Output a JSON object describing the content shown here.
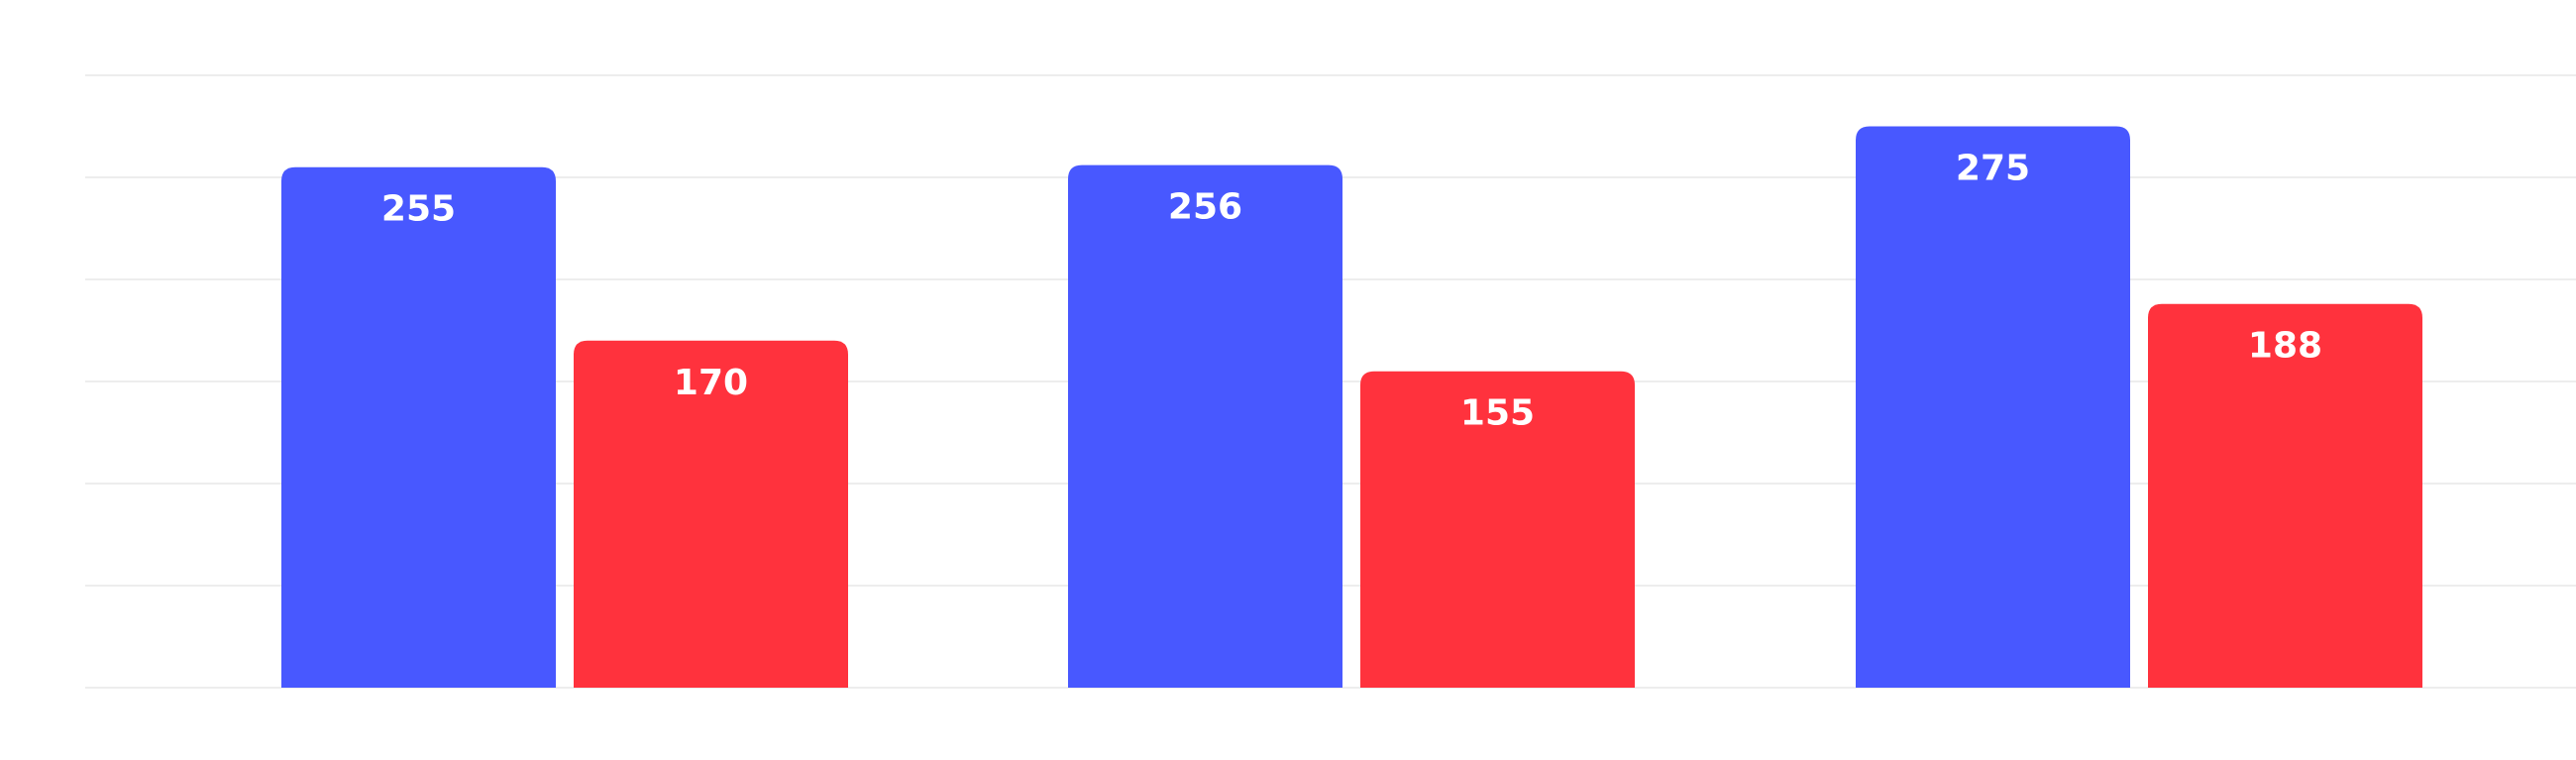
{
  "chart_data": {
    "type": "bar",
    "categories": [
      "",
      "",
      ""
    ],
    "series": [
      {
        "values": [
          255,
          256,
          275
        ],
        "color": "#4858ff"
      },
      {
        "values": [
          170,
          155,
          188
        ],
        "color": "#ff323d"
      }
    ],
    "title": "",
    "xlabel": "",
    "ylabel": "",
    "ylim": [
      0,
      300
    ],
    "grid": true,
    "legend": "none",
    "data_labels": true
  }
}
